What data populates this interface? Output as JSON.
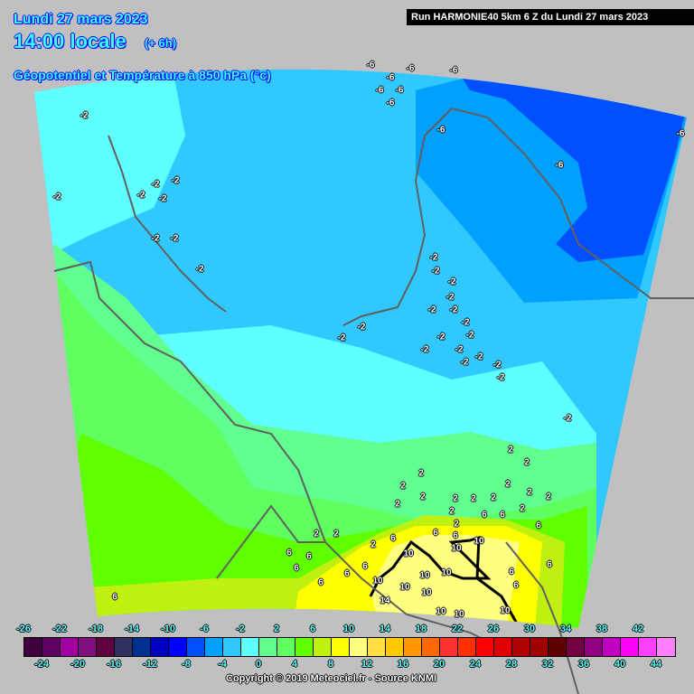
{
  "header": {
    "date": "Lundi 27 mars 2023",
    "time": "14:00 locale",
    "offset": "(+ 6h)",
    "parameter": "Géopotentiel et Température à 850 hPa (°c)",
    "run": "Run HARMONIE40 5km 6 Z du Lundi 27 mars 2023"
  },
  "map": {
    "background_color": "#c0c0c0",
    "contour_labels": [
      "-6",
      "-6",
      "-6",
      "-6",
      "-6",
      "-6",
      "-6",
      "-6",
      "-6",
      "-6",
      "-2",
      "-2",
      "-2",
      "-2",
      "-2",
      "-2",
      "-2",
      "-2",
      "-2",
      "-2",
      "-2",
      "-2",
      "-2",
      "-2",
      "-2",
      "-2",
      "-2",
      "-2",
      "-2",
      "-2",
      "-2",
      "-2",
      "-2",
      "-2",
      "-2",
      "-2",
      "-2",
      "2",
      "2",
      "2",
      "2",
      "2",
      "2",
      "2",
      "2",
      "2",
      "2",
      "2",
      "2",
      "2",
      "2",
      "2",
      "2",
      "2",
      "2",
      "6",
      "6",
      "6",
      "6",
      "6",
      "6",
      "6",
      "6",
      "6",
      "6",
      "6",
      "6",
      "6",
      "6",
      "6",
      "6",
      "10",
      "10",
      "10",
      "10",
      "10",
      "10",
      "10",
      "10",
      "10",
      "10",
      "10",
      "14"
    ]
  },
  "legend": {
    "unit": "°C",
    "boundaries_top": [
      "-26",
      "-22",
      "-18",
      "-14",
      "-10",
      "-6",
      "-2",
      "2",
      "6",
      "10",
      "14",
      "18",
      "22",
      "26",
      "30",
      "34",
      "38",
      "42"
    ],
    "boundaries_bottom": [
      "-24",
      "-20",
      "-16",
      "-12",
      "-8",
      "-4",
      "0",
      "4",
      "8",
      "12",
      "16",
      "20",
      "24",
      "28",
      "32",
      "36",
      "40",
      "44"
    ],
    "colors": [
      "#400040",
      "#600060",
      "#a000a0",
      "#801080",
      "#600040",
      "#303060",
      "#003090",
      "#0000c0",
      "#0000ff",
      "#0050ff",
      "#00a0ff",
      "#30c8ff",
      "#60ffff",
      "#60ff90",
      "#60ff60",
      "#60ff00",
      "#c0f010",
      "#ffff00",
      "#ffff80",
      "#ffe040",
      "#ffc800",
      "#ff9800",
      "#ff6800",
      "#ff3030",
      "#ff3000",
      "#ff0000",
      "#e00000",
      "#b00000",
      "#a00000",
      "#600000",
      "#700040",
      "#900080",
      "#c000c0",
      "#ff00ff",
      "#ff40ff",
      "#ff80ff"
    ]
  },
  "footer": {
    "copyright": "Copyright © 2019 Meteociel.fr - Source KNMI"
  }
}
